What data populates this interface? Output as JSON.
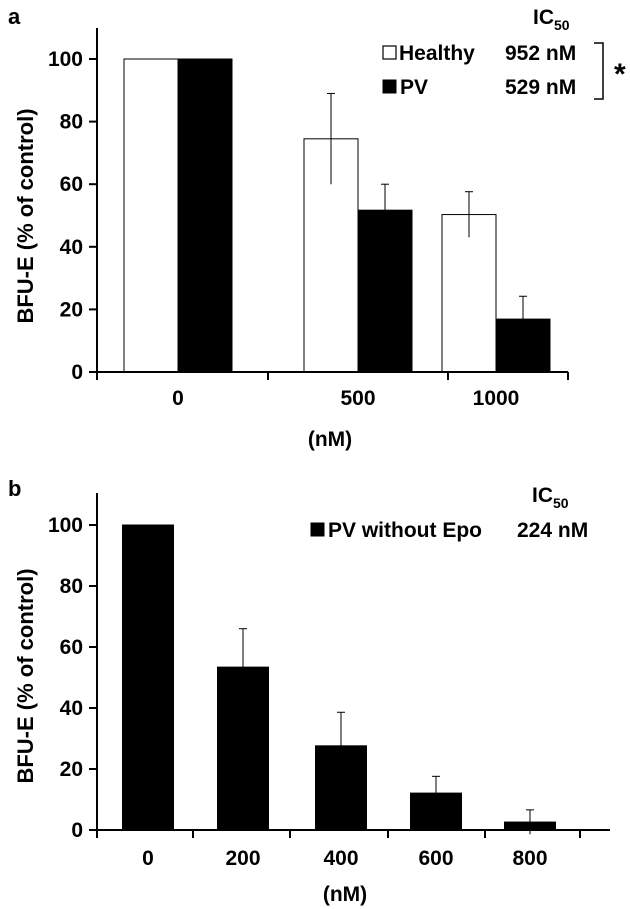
{
  "chart_data": [
    {
      "type": "bar",
      "panel_label": "a",
      "categories": [
        "0",
        "500",
        "1000"
      ],
      "series": [
        {
          "name": "Healthy",
          "color": "#ffffff",
          "values": [
            100,
            74.5,
            50.3
          ],
          "errors": [
            0,
            14.5,
            7.3
          ],
          "ic50": "952 nM"
        },
        {
          "name": "PV",
          "color": "#000000",
          "values": [
            100,
            51.7,
            16.9
          ],
          "errors": [
            0,
            8.3,
            7.3
          ],
          "ic50": "529 nM"
        }
      ],
      "xlabel": "(nM)",
      "ylabel": "BFU-E  (% of control)",
      "ylim": [
        0,
        110
      ],
      "yticks": [
        "0",
        "20",
        "40",
        "60",
        "80",
        "100"
      ],
      "legend_header": {
        "main": "IC",
        "sub": "50"
      },
      "significance": "*",
      "legend_position": "top-right"
    },
    {
      "type": "bar",
      "panel_label": "b",
      "categories": [
        "0",
        "200",
        "400",
        "600",
        "800"
      ],
      "series": [
        {
          "name": "PV without Epo",
          "color": "#000000",
          "values": [
            100,
            53.4,
            27.6,
            12.1,
            2.6
          ],
          "errors": [
            0,
            12.6,
            11.0,
            5.5,
            4.0
          ],
          "ic50": "224 nM"
        }
      ],
      "xlabel": "(nM)",
      "ylabel": "BFU-E  (% of control)",
      "ylim": [
        0,
        110
      ],
      "yticks": [
        "0",
        "20",
        "40",
        "60",
        "80",
        "100"
      ],
      "legend_header": {
        "main": "IC",
        "sub": "50"
      },
      "legend_position": "top-right"
    }
  ]
}
